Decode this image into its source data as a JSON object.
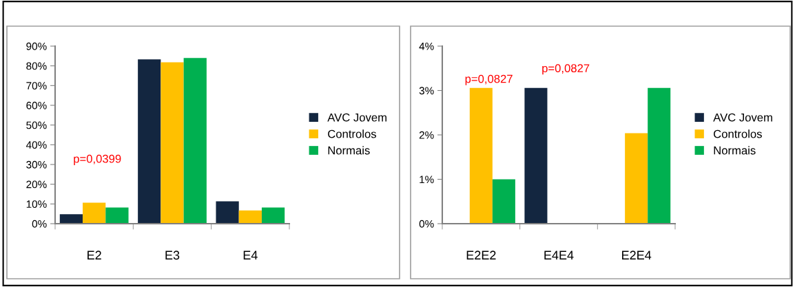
{
  "chart_data": [
    {
      "type": "bar",
      "categories": [
        "E2",
        "E3",
        "E4"
      ],
      "series": [
        {
          "name": "AVC Jovem",
          "color": "#132640",
          "values": [
            4.8,
            83.3,
            11.3
          ]
        },
        {
          "name": "Controlos",
          "color": "#ffc000",
          "values": [
            10.6,
            81.8,
            6.7
          ]
        },
        {
          "name": "Normais",
          "color": "#00b050",
          "values": [
            8.2,
            84.0,
            8.2
          ]
        }
      ],
      "ylim": [
        0,
        90
      ],
      "yticks": [
        {
          "value": 0,
          "label": "0%"
        },
        {
          "value": 10,
          "label": "10%"
        },
        {
          "value": 20,
          "label": "20%"
        },
        {
          "value": 30,
          "label": "30%"
        },
        {
          "value": 40,
          "label": "40%"
        },
        {
          "value": 50,
          "label": "50%"
        },
        {
          "value": 60,
          "label": "60%"
        },
        {
          "value": 70,
          "label": "70%"
        },
        {
          "value": 80,
          "label": "80%"
        },
        {
          "value": 90,
          "label": "90%"
        }
      ],
      "annotations": [
        "p=0,0399"
      ],
      "legend": "right",
      "grid": false
    },
    {
      "type": "bar",
      "categories": [
        "E2E2",
        "E4E4",
        "E2E4"
      ],
      "series": [
        {
          "name": "AVC Jovem",
          "color": "#132640",
          "values": [
            0,
            3.06,
            0
          ]
        },
        {
          "name": "Controlos",
          "color": "#ffc000",
          "values": [
            3.06,
            0,
            2.04
          ]
        },
        {
          "name": "Normais",
          "color": "#00b050",
          "values": [
            1.0,
            0,
            3.06
          ]
        }
      ],
      "ylim": [
        0,
        4
      ],
      "yticks": [
        {
          "value": 0,
          "label": "0%"
        },
        {
          "value": 1,
          "label": "1%"
        },
        {
          "value": 2,
          "label": "2%"
        },
        {
          "value": 3,
          "label": "3%"
        },
        {
          "value": 4,
          "label": "4%"
        }
      ],
      "annotations": [
        "p=0,0827",
        "p=0,0827"
      ],
      "legend": "right",
      "grid": false
    }
  ]
}
